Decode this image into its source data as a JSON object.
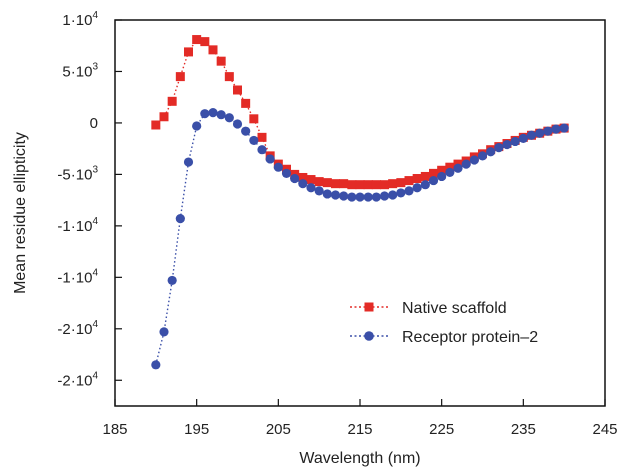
{
  "chart_data": {
    "type": "scatter",
    "xlabel": "Wavelength (nm)",
    "ylabel": "Mean residue ellipticity",
    "xlim": [
      185,
      245
    ],
    "ylim": [
      -27500,
      10000
    ],
    "grid": false,
    "legend_position": "lower-right",
    "x_ticks": [
      {
        "value": 185,
        "label": "185"
      },
      {
        "value": 195,
        "label": "195"
      },
      {
        "value": 205,
        "label": "205"
      },
      {
        "value": 215,
        "label": "215"
      },
      {
        "value": 225,
        "label": "225"
      },
      {
        "value": 235,
        "label": "235"
      },
      {
        "value": 245,
        "label": "245"
      }
    ],
    "y_ticks": [
      {
        "value": 10000,
        "mantissa": "1·10",
        "exp": "4"
      },
      {
        "value": 5000,
        "mantissa": "5·10",
        "exp": "3"
      },
      {
        "value": 0,
        "mantissa": "0",
        "exp": ""
      },
      {
        "value": -5000,
        "mantissa": "-5·10",
        "exp": "3"
      },
      {
        "value": -10000,
        "mantissa": "-1·10",
        "exp": "4"
      },
      {
        "value": -15000,
        "mantissa": "-1·10",
        "exp": "4"
      },
      {
        "value": -20000,
        "mantissa": "-2·10",
        "exp": "4"
      },
      {
        "value": -25000,
        "mantissa": "-2·10",
        "exp": "4"
      }
    ],
    "x": [
      190,
      191,
      192,
      193,
      194,
      195,
      196,
      197,
      198,
      199,
      200,
      201,
      202,
      203,
      204,
      205,
      206,
      207,
      208,
      209,
      210,
      211,
      212,
      213,
      214,
      215,
      216,
      217,
      218,
      219,
      220,
      221,
      222,
      223,
      224,
      225,
      226,
      227,
      228,
      229,
      230,
      231,
      232,
      233,
      234,
      235,
      236,
      237,
      238,
      239,
      240
    ],
    "series": [
      {
        "name": "Native scaffold",
        "color": "#e32b26",
        "marker": "square",
        "values": [
          -200,
          600,
          2100,
          4500,
          6900,
          8100,
          7900,
          7100,
          6000,
          4500,
          3200,
          1900,
          400,
          -1400,
          -3200,
          -4000,
          -4500,
          -5000,
          -5300,
          -5500,
          -5700,
          -5800,
          -5900,
          -5900,
          -6000,
          -6000,
          -6000,
          -6000,
          -6000,
          -5900,
          -5800,
          -5600,
          -5400,
          -5200,
          -4900,
          -4600,
          -4300,
          -4000,
          -3700,
          -3300,
          -3000,
          -2600,
          -2300,
          -2000,
          -1700,
          -1400,
          -1200,
          -1000,
          -800,
          -600,
          -500
        ]
      },
      {
        "name": "Receptor protein–2",
        "color": "#3a4fa8",
        "marker": "circle",
        "values": [
          -23500,
          -20300,
          -15300,
          -9300,
          -3800,
          -300,
          900,
          1000,
          800,
          500,
          -100,
          -800,
          -1700,
          -2600,
          -3500,
          -4300,
          -4900,
          -5400,
          -5900,
          -6300,
          -6600,
          -6900,
          -7000,
          -7100,
          -7200,
          -7200,
          -7200,
          -7200,
          -7100,
          -7000,
          -6800,
          -6600,
          -6300,
          -6000,
          -5600,
          -5200,
          -4800,
          -4400,
          -4000,
          -3600,
          -3200,
          -2800,
          -2400,
          -2100,
          -1800,
          -1500,
          -1200,
          -1000,
          -800,
          -600,
          -500
        ]
      }
    ]
  }
}
